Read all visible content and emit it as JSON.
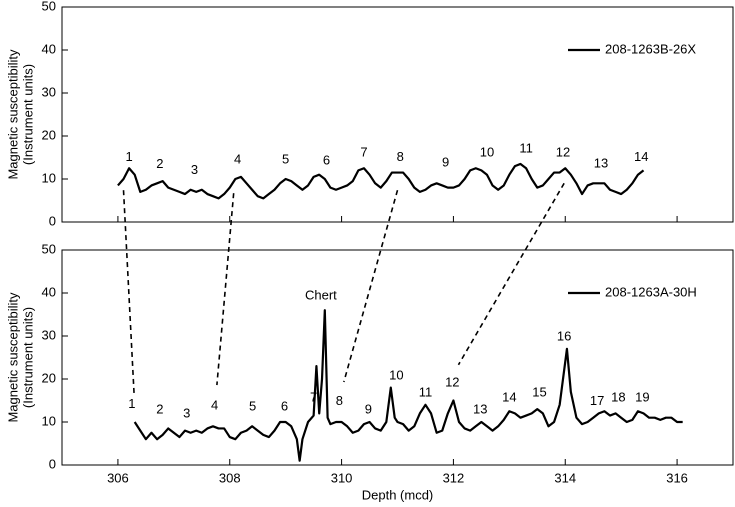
{
  "chart_data": [
    {
      "type": "line",
      "ylabel": [
        "Magnetic susceptibility",
        "(Instrument units)"
      ],
      "xlim": [
        305,
        317
      ],
      "xticks": [
        306,
        308,
        310,
        312,
        314,
        316
      ],
      "ylim": [
        0,
        50
      ],
      "yticks": [
        0,
        10,
        20,
        30,
        40,
        50
      ],
      "legend": "upper right",
      "series": [
        {
          "name": "208-1263B-26X",
          "color": "#000000",
          "x": [
            306.0,
            306.1,
            306.2,
            306.3,
            306.4,
            306.5,
            306.6,
            306.7,
            306.8,
            306.9,
            307.0,
            307.1,
            307.2,
            307.3,
            307.4,
            307.5,
            307.6,
            307.7,
            307.8,
            307.9,
            308.0,
            308.1,
            308.2,
            308.3,
            308.4,
            308.5,
            308.6,
            308.7,
            308.8,
            308.9,
            309.0,
            309.1,
            309.2,
            309.3,
            309.4,
            309.5,
            309.6,
            309.7,
            309.8,
            309.9,
            310.0,
            310.1,
            310.2,
            310.3,
            310.4,
            310.5,
            310.6,
            310.7,
            310.8,
            310.9,
            311.0,
            311.1,
            311.2,
            311.3,
            311.4,
            311.5,
            311.6,
            311.7,
            311.8,
            311.9,
            312.0,
            312.1,
            312.2,
            312.3,
            312.4,
            312.5,
            312.6,
            312.7,
            312.8,
            312.9,
            313.0,
            313.1,
            313.2,
            313.3,
            313.4,
            313.5,
            313.6,
            313.7,
            313.8,
            313.9,
            314.0,
            314.1,
            314.2,
            314.3,
            314.4,
            314.5,
            314.6,
            314.7,
            314.8,
            314.9,
            315.0,
            315.1,
            315.2,
            315.3,
            315.4
          ],
          "values": [
            8.5,
            10,
            12.5,
            11,
            7,
            7.5,
            8.5,
            9,
            9.5,
            8,
            7.5,
            7,
            6.5,
            7.5,
            7,
            7.5,
            6.5,
            6,
            5.5,
            6.5,
            8,
            10,
            10.5,
            9,
            7.5,
            6,
            5.5,
            6.5,
            7.5,
            9,
            10,
            9.5,
            8.5,
            7.5,
            8.5,
            10.5,
            11,
            10,
            8,
            7.5,
            8,
            8.5,
            9.5,
            12,
            12.5,
            11,
            9,
            8,
            9.5,
            11.5,
            11.5,
            11.5,
            10,
            8,
            7,
            7.5,
            8.5,
            9,
            8.5,
            8,
            8,
            8.5,
            10,
            12,
            12.5,
            12,
            11,
            8.5,
            7.5,
            8.5,
            11,
            13,
            13.5,
            12.5,
            10,
            8,
            8.5,
            10,
            11.5,
            11.5,
            12.5,
            11,
            9,
            6.5,
            8.5,
            9,
            9,
            9,
            7.5,
            7,
            6.5,
            7.5,
            9,
            11,
            12
          ]
        }
      ],
      "annotations": [
        {
          "text": "1",
          "x": 306.2,
          "y": 15
        },
        {
          "text": "2",
          "x": 306.75,
          "y": 13.3
        },
        {
          "text": "3",
          "x": 307.37,
          "y": 12
        },
        {
          "text": "4",
          "x": 308.14,
          "y": 14.4
        },
        {
          "text": "5",
          "x": 309.0,
          "y": 14.4
        },
        {
          "text": "6",
          "x": 309.73,
          "y": 14.2
        },
        {
          "text": "7",
          "x": 310.4,
          "y": 16
        },
        {
          "text": "8",
          "x": 311.05,
          "y": 15
        },
        {
          "text": "9",
          "x": 311.86,
          "y": 13.7
        },
        {
          "text": "10",
          "x": 312.6,
          "y": 16
        },
        {
          "text": "11",
          "x": 313.3,
          "y": 17
        },
        {
          "text": "12",
          "x": 313.96,
          "y": 16
        },
        {
          "text": "13",
          "x": 314.64,
          "y": 13.5
        },
        {
          "text": "14",
          "x": 315.36,
          "y": 15
        }
      ]
    },
    {
      "type": "line",
      "ylabel": [
        "Magnetic susceptibility",
        "(Instrument units)"
      ],
      "xlabel": "Depth (mcd)",
      "xlim": [
        305,
        317
      ],
      "xticks": [
        306,
        308,
        310,
        312,
        314,
        316
      ],
      "ylim": [
        0,
        50
      ],
      "yticks": [
        0,
        10,
        20,
        30,
        40,
        50
      ],
      "legend": "upper right",
      "series": [
        {
          "name": "208-1263A-30H",
          "color": "#000000",
          "x": [
            306.3,
            306.4,
            306.5,
            306.6,
            306.7,
            306.8,
            306.9,
            307.0,
            307.1,
            307.2,
            307.3,
            307.4,
            307.5,
            307.6,
            307.7,
            307.8,
            307.9,
            308.0,
            308.1,
            308.2,
            308.3,
            308.4,
            308.5,
            308.6,
            308.7,
            308.8,
            308.9,
            309.0,
            309.1,
            309.2,
            309.25,
            309.3,
            309.4,
            309.5,
            309.55,
            309.6,
            309.65,
            309.7,
            309.75,
            309.8,
            309.9,
            310.0,
            310.1,
            310.2,
            310.3,
            310.4,
            310.5,
            310.6,
            310.7,
            310.8,
            310.88,
            310.95,
            311.0,
            311.1,
            311.2,
            311.3,
            311.4,
            311.5,
            311.6,
            311.7,
            311.8,
            311.9,
            312.0,
            312.1,
            312.2,
            312.3,
            312.4,
            312.5,
            312.6,
            312.7,
            312.8,
            312.9,
            313.0,
            313.1,
            313.2,
            313.3,
            313.4,
            313.5,
            313.6,
            313.7,
            313.8,
            313.9,
            314.0,
            314.03,
            314.1,
            314.2,
            314.3,
            314.4,
            314.5,
            314.6,
            314.7,
            314.8,
            314.9,
            315.0,
            315.1,
            315.2,
            315.3,
            315.4,
            315.5,
            315.6,
            315.7,
            315.8,
            315.9,
            316.0,
            316.1
          ],
          "values": [
            10,
            8,
            6,
            7.5,
            6,
            7,
            8.5,
            7.5,
            6.5,
            8,
            7.5,
            8,
            7.5,
            8.5,
            9,
            8.5,
            8.5,
            6.5,
            6,
            7.5,
            8,
            9,
            8,
            7,
            6.5,
            8,
            10,
            10,
            9,
            6,
            1,
            6,
            10,
            11.5,
            23,
            12,
            20,
            36,
            11,
            9.5,
            10,
            10,
            9,
            7.5,
            8,
            9.5,
            10,
            8.5,
            8,
            10,
            18,
            11,
            10,
            9.5,
            8,
            9,
            12,
            14,
            12,
            7.5,
            8,
            12,
            15,
            10,
            8.5,
            8,
            9,
            10,
            9,
            8,
            9,
            10.5,
            12.5,
            12,
            11,
            11.5,
            12,
            13,
            12,
            9,
            10,
            14,
            24,
            27,
            17,
            11,
            9.5,
            10,
            11,
            12,
            12.5,
            11.5,
            12,
            11,
            10,
            10.5,
            12.5,
            12,
            11,
            11,
            10.5,
            11,
            11,
            10,
            10
          ]
        }
      ],
      "annotations": [
        {
          "text": "1",
          "x": 306.25,
          "y": 14
        },
        {
          "text": "2",
          "x": 306.75,
          "y": 12.8
        },
        {
          "text": "3",
          "x": 307.23,
          "y": 11.9
        },
        {
          "text": "4",
          "x": 307.73,
          "y": 13.7
        },
        {
          "text": "5",
          "x": 308.41,
          "y": 13.5
        },
        {
          "text": "6",
          "x": 308.98,
          "y": 13.5
        },
        {
          "text": "7",
          "x": 309.5,
          "y": 15.6
        },
        {
          "text": "Chert",
          "x": 309.63,
          "y": 39.3
        },
        {
          "text": "8",
          "x": 309.96,
          "y": 14.7
        },
        {
          "text": "9",
          "x": 310.48,
          "y": 12.8
        },
        {
          "text": "10",
          "x": 310.98,
          "y": 20.7
        },
        {
          "text": "11",
          "x": 311.5,
          "y": 16.7
        },
        {
          "text": "12",
          "x": 311.98,
          "y": 19
        },
        {
          "text": "13",
          "x": 312.48,
          "y": 12.8
        },
        {
          "text": "14",
          "x": 313.0,
          "y": 15.6
        },
        {
          "text": "15",
          "x": 313.54,
          "y": 16.7
        },
        {
          "text": "16",
          "x": 313.98,
          "y": 29.8
        },
        {
          "text": "17",
          "x": 314.57,
          "y": 14.7
        },
        {
          "text": "18",
          "x": 314.95,
          "y": 15.6
        },
        {
          "text": "19",
          "x": 315.38,
          "y": 15.6
        }
      ]
    }
  ],
  "tie_lines": [
    {
      "top": [
        306.1,
        7.4
      ],
      "bottom": [
        306.29,
        16.3
      ]
    },
    {
      "top": [
        308.07,
        6.7
      ],
      "bottom": [
        307.77,
        18.6
      ]
    },
    {
      "top": [
        311.0,
        7.4
      ],
      "bottom": [
        310.04,
        19.3
      ]
    },
    {
      "top": [
        313.98,
        9
      ],
      "bottom": [
        312.09,
        23.3
      ]
    }
  ]
}
